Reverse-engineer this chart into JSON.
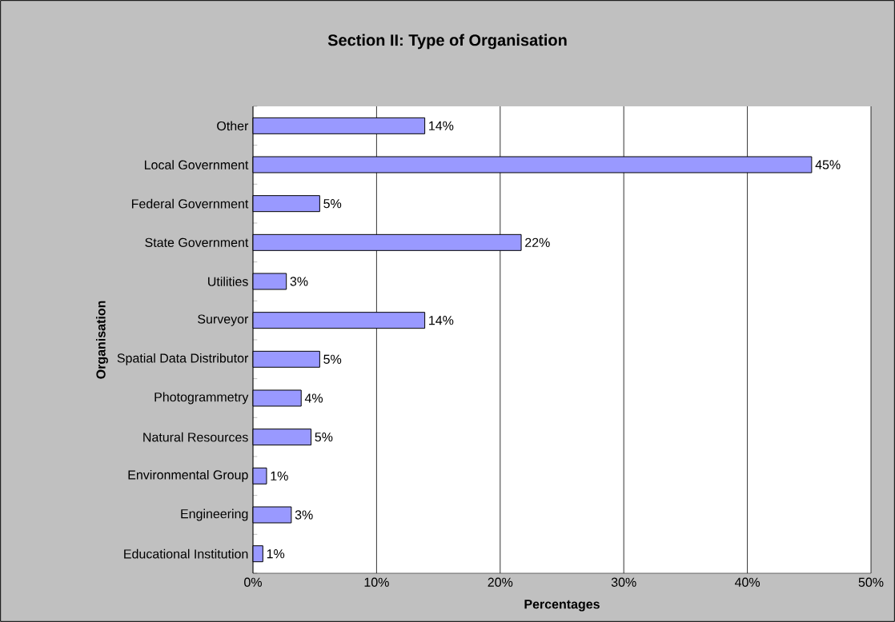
{
  "chart_data": {
    "type": "bar",
    "orientation": "horizontal",
    "title": "Section II: Type of Organisation",
    "xlabel": "Percentages",
    "ylabel": "Organisation",
    "categories": [
      "Other",
      "Local Government",
      "Federal Government",
      "State Government",
      "Utilities",
      "Surveyor",
      "Spatial Data Distributor",
      "Photogrammetry",
      "Natural Resources",
      "Environmental Group",
      "Engineering",
      "Educational Institution"
    ],
    "values": [
      13.9,
      45.2,
      5.4,
      21.7,
      2.7,
      13.9,
      5.4,
      3.9,
      4.7,
      1.1,
      3.1,
      0.8
    ],
    "value_labels": [
      "14%",
      "45%",
      "5%",
      "22%",
      "3%",
      "14%",
      "5%",
      "4%",
      "5%",
      "1%",
      "3%",
      "1%"
    ],
    "color": "#9999ff",
    "xlim": [
      0,
      50
    ],
    "xticks": [
      {
        "value": 0,
        "label": "0%"
      },
      {
        "value": 10,
        "label": "10%"
      },
      {
        "value": 20,
        "label": "20%"
      },
      {
        "value": 30,
        "label": "30%"
      },
      {
        "value": 40,
        "label": "40%"
      },
      {
        "value": 50,
        "label": "50%"
      }
    ],
    "grid": "x"
  }
}
